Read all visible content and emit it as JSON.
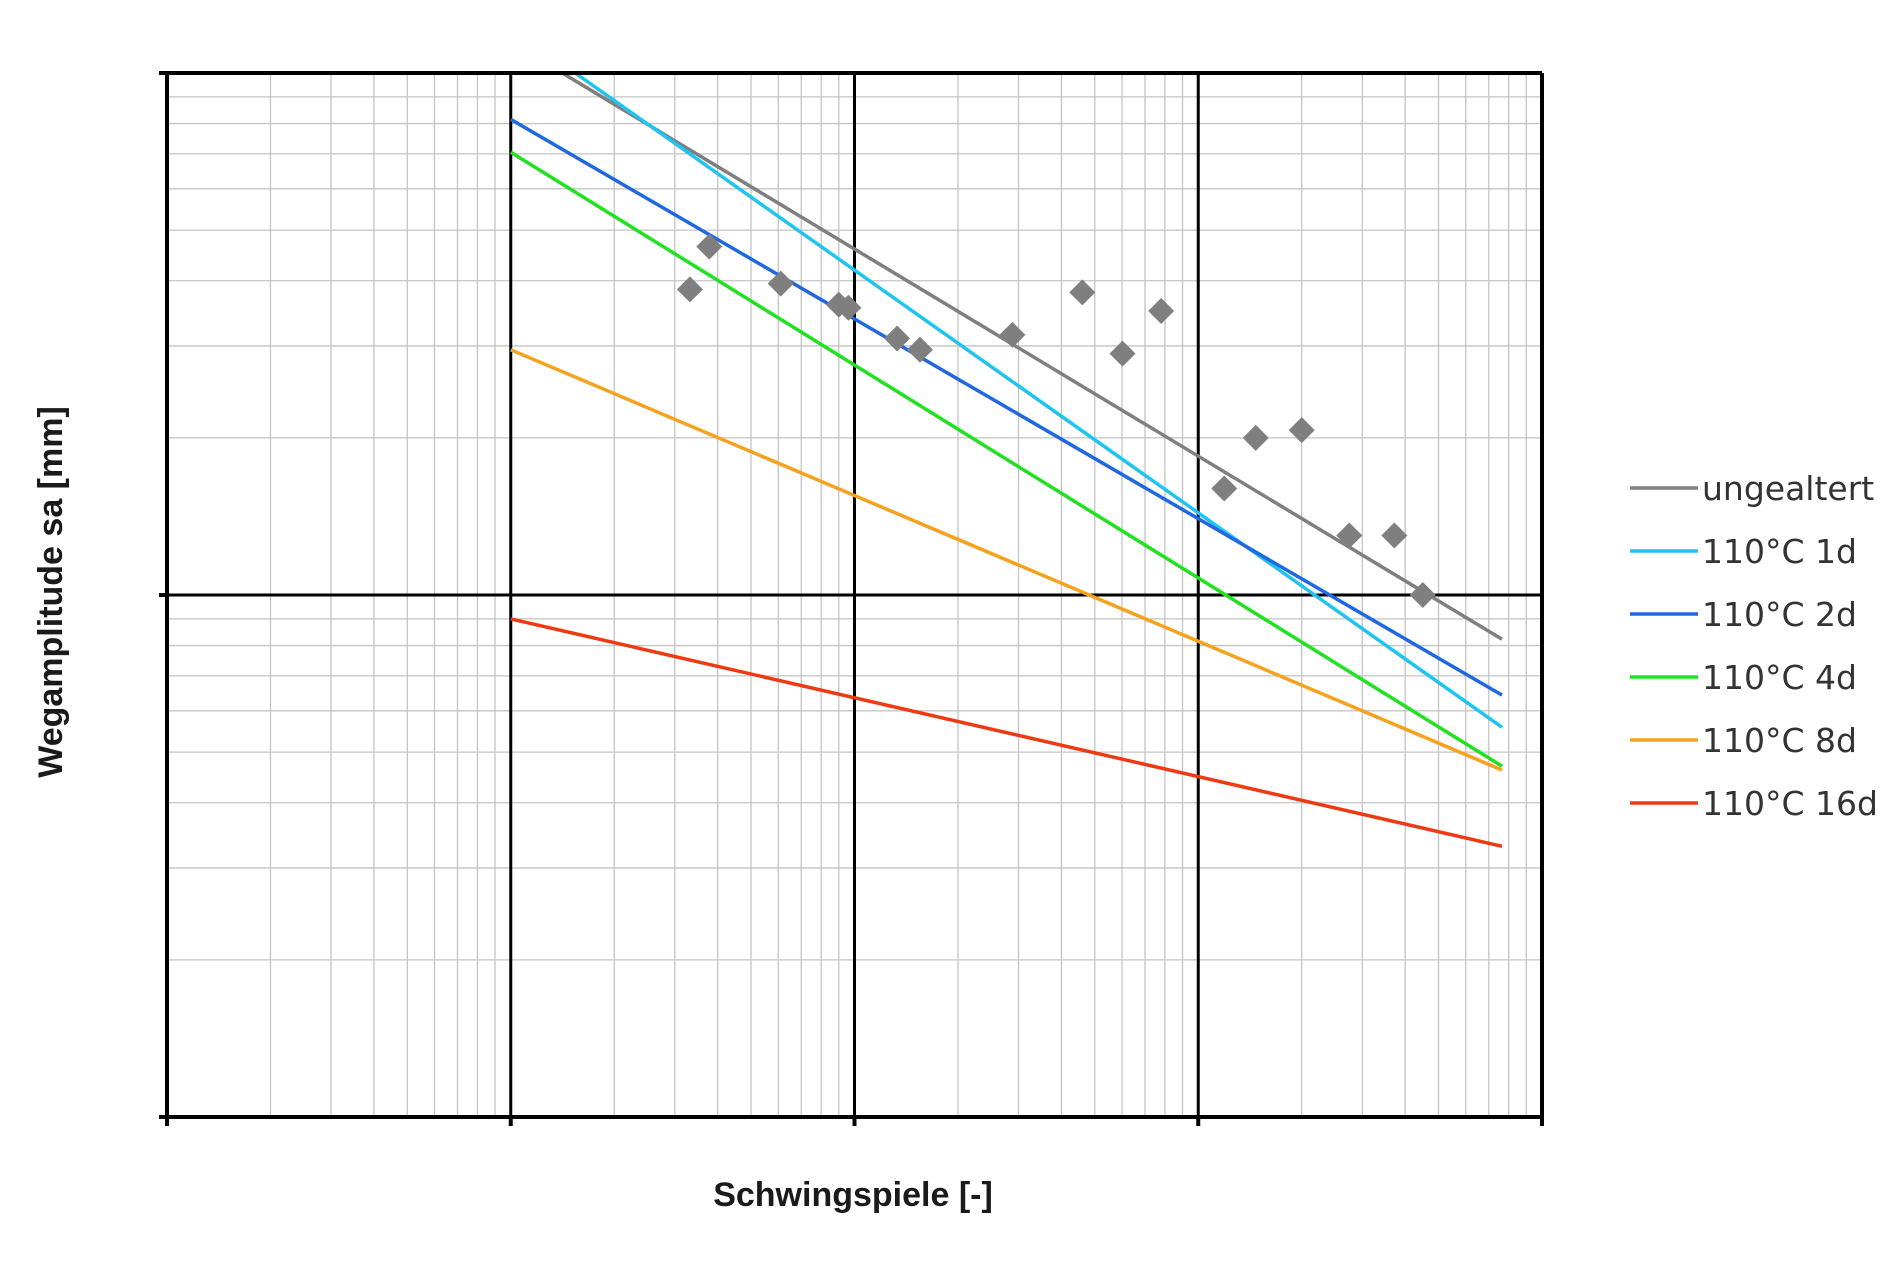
{
  "chart_data": {
    "type": "line",
    "xlabel": "Schwingspiele [-]",
    "ylabel": "Wegamplitude sa [mm]",
    "x_scale": "log",
    "y_scale": "log",
    "xlim": [
      100,
      1000000
    ],
    "ylim": [
      0.1,
      10
    ],
    "grid": true,
    "legend_position": "right",
    "series": [
      {
        "name": "ungealtert",
        "color": "#7f7f7f",
        "x": [
          1412,
          765000
        ],
        "y": [
          10.0,
          0.823
        ]
      },
      {
        "name": "110°C 1d",
        "color": "#1fc4f0",
        "x": [
          1540,
          765000
        ],
        "y": [
          10.0,
          0.558
        ]
      },
      {
        "name": "110°C 2d",
        "color": "#1f68e0",
        "x": [
          1000,
          765000
        ],
        "y": [
          8.15,
          0.643
        ]
      },
      {
        "name": "110°C 4d",
        "color": "#22e022",
        "x": [
          1000,
          765000
        ],
        "y": [
          7.05,
          0.47
        ]
      },
      {
        "name": "110°C 8d",
        "color": "#f5a21e",
        "x": [
          1000,
          765000
        ],
        "y": [
          2.95,
          0.462
        ]
      },
      {
        "name": "110°C 16d",
        "color": "#ee3a12",
        "x": [
          1000,
          765000
        ],
        "y": [
          0.9,
          0.33
        ]
      }
    ],
    "points": {
      "color": "#7f7f7f",
      "marker": "diamond",
      "x": [
        3320,
        3780,
        6100,
        9000,
        9600,
        13300,
        15500,
        28800,
        46000,
        60200,
        78000,
        119000,
        147000,
        200000,
        275000,
        372000,
        450000
      ],
      "y": [
        3.85,
        4.65,
        3.95,
        3.6,
        3.55,
        3.1,
        2.95,
        3.15,
        3.8,
        2.9,
        3.5,
        1.6,
        2.0,
        2.07,
        1.3,
        1.3,
        1.0
      ]
    }
  }
}
